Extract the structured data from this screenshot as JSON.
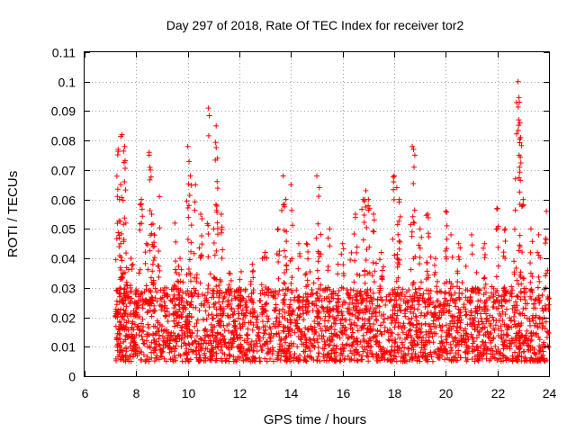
{
  "chart_data": {
    "type": "scatter",
    "title": "Day 297 of 2018, Rate Of TEC Index for receiver tor2",
    "xlabel": "GPS time / hours",
    "ylabel": "ROTI / TECUs",
    "xlim": [
      6,
      24
    ],
    "ylim": [
      0,
      0.11
    ],
    "xticks": [
      6,
      8,
      10,
      12,
      14,
      16,
      18,
      20,
      22,
      24
    ],
    "xtick_labels": [
      "6",
      "8",
      "10",
      "12",
      "14",
      "16",
      "18",
      "20",
      "22",
      "24"
    ],
    "yticks": [
      0,
      0.01,
      0.02,
      0.03,
      0.04,
      0.05,
      0.06,
      0.07,
      0.08,
      0.09,
      0.1,
      0.11
    ],
    "ytick_labels": [
      "0",
      "0.01",
      "0.02",
      "0.03",
      "0.04",
      "0.05",
      "0.06",
      "0.07",
      "0.08",
      "0.09",
      "0.1",
      "0.11"
    ],
    "grid": true,
    "marker": "+",
    "color": "#ff0000",
    "series": [
      {
        "name": "ROTI",
        "x": [
          7.25,
          7.3,
          7.35,
          7.4,
          7.45,
          7.5,
          7.55,
          7.6,
          7.8,
          8.0,
          8.2,
          8.4,
          8.5,
          8.55,
          8.6,
          8.7,
          8.9,
          9.1,
          9.5,
          9.7,
          10.0,
          10.1,
          10.3,
          10.5,
          10.8,
          11.0,
          11.1,
          11.15,
          11.3,
          11.6,
          12.0,
          12.5,
          13.0,
          13.5,
          13.7,
          13.8,
          14.0,
          14.3,
          14.6,
          15.0,
          15.1,
          15.5,
          16.0,
          16.5,
          16.8,
          16.9,
          17.0,
          17.2,
          17.5,
          18.0,
          18.1,
          18.2,
          18.7,
          18.75,
          18.8,
          19.0,
          19.3,
          19.6,
          20.0,
          20.2,
          20.5,
          21.0,
          21.5,
          22.0,
          22.3,
          22.7,
          22.8,
          22.85,
          22.9,
          23.0,
          23.3,
          23.6,
          23.9
        ],
        "y": [
          0.022,
          0.077,
          0.06,
          0.045,
          0.082,
          0.035,
          0.078,
          0.052,
          0.04,
          0.025,
          0.06,
          0.045,
          0.076,
          0.07,
          0.055,
          0.048,
          0.061,
          0.03,
          0.052,
          0.04,
          0.078,
          0.068,
          0.065,
          0.055,
          0.091,
          0.05,
          0.085,
          0.074,
          0.055,
          0.035,
          0.03,
          0.038,
          0.042,
          0.05,
          0.068,
          0.06,
          0.065,
          0.045,
          0.045,
          0.068,
          0.064,
          0.05,
          0.045,
          0.055,
          0.06,
          0.063,
          0.06,
          0.055,
          0.042,
          0.068,
          0.064,
          0.06,
          0.078,
          0.077,
          0.075,
          0.05,
          0.055,
          0.04,
          0.056,
          0.048,
          0.045,
          0.048,
          0.045,
          0.057,
          0.05,
          0.067,
          0.1,
          0.093,
          0.081,
          0.06,
          0.05,
          0.048,
          0.056
        ],
        "baseline_range": [
          0.005,
          0.03
        ],
        "x_range_observed": [
          7.2,
          24
        ]
      }
    ]
  }
}
